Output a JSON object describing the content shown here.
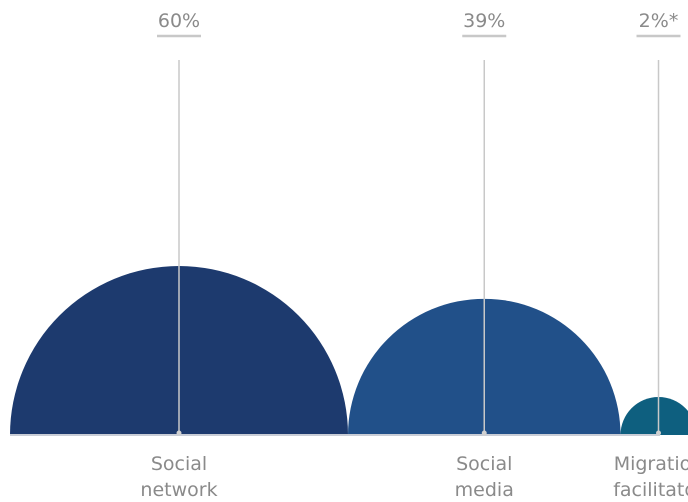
{
  "chart_data": {
    "type": "semicircle-bubble",
    "categories": [
      [
        "Social",
        "network"
      ],
      [
        "Social",
        "media"
      ],
      [
        "Migration",
        "facilitator"
      ]
    ],
    "values": [
      60,
      39,
      2
    ],
    "value_labels": [
      "60%",
      "39%",
      "2%*"
    ],
    "colors": [
      "#1d3a6e",
      "#215089",
      "#0e5f7f"
    ],
    "baseline_color": "#c9cdd6",
    "leader_color": "#c8c8c8",
    "label_color": "#8a8a8a"
  }
}
